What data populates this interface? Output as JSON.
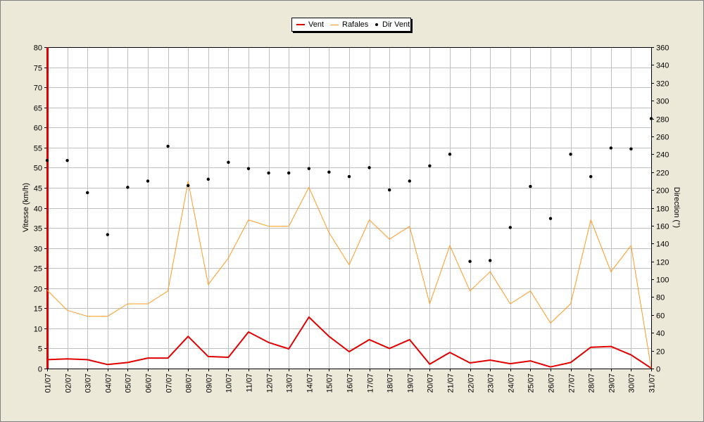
{
  "chart_data": {
    "type": "line",
    "categories": [
      "01/07",
      "02/07",
      "03/07",
      "04/07",
      "05/07",
      "06/07",
      "07/07",
      "08/07",
      "09/07",
      "10/07",
      "11/07",
      "12/07",
      "13/07",
      "14/07",
      "15/07",
      "16/07",
      "17/07",
      "18/07",
      "19/07",
      "20/07",
      "21/07",
      "22/07",
      "23/07",
      "24/07",
      "25/07",
      "26/07",
      "27/07",
      "28/07",
      "29/07",
      "30/07",
      "31/07"
    ],
    "ylabel": "Vitesse (km/h)",
    "ylabel_right": "Direction (°)",
    "ylim": [
      0,
      80
    ],
    "ylim_right": [
      0,
      360
    ],
    "yticks": [
      0,
      5,
      10,
      15,
      20,
      25,
      30,
      35,
      40,
      45,
      50,
      55,
      60,
      65,
      70,
      75,
      80
    ],
    "yticks_right": [
      0,
      20,
      40,
      60,
      80,
      100,
      120,
      140,
      160,
      180,
      200,
      220,
      240,
      260,
      280,
      300,
      320,
      340,
      360
    ],
    "grid": true,
    "legend_position": "top-center",
    "series": [
      {
        "name": "Vent",
        "color": "#e00000",
        "axis": "left",
        "style": "line",
        "values": [
          2.2,
          2.4,
          2.2,
          1.0,
          1.5,
          2.6,
          2.6,
          8.0,
          3.0,
          2.8,
          9.1,
          6.5,
          4.9,
          12.8,
          8.0,
          4.2,
          7.2,
          5.0,
          7.2,
          1.1,
          4.0,
          1.4,
          2.1,
          1.2,
          1.9,
          0.4,
          1.5,
          5.3,
          5.5,
          3.4,
          0.1
        ]
      },
      {
        "name": "Rafales",
        "color": "#ff9922",
        "axis": "left",
        "style": "line",
        "values": [
          19.5,
          14.5,
          13.0,
          13.0,
          16.1,
          16.1,
          19.3,
          46.6,
          20.9,
          27.5,
          37.0,
          35.4,
          35.4,
          45.1,
          33.8,
          25.8,
          37.0,
          32.2,
          35.4,
          16.1,
          30.6,
          19.3,
          24.1,
          16.1,
          19.3,
          11.3,
          16.1,
          37.0,
          24.1,
          30.6,
          0.1
        ]
      },
      {
        "name": "Dir Vent",
        "color": "#000000",
        "axis": "right",
        "style": "points",
        "values": [
          233,
          233,
          197,
          150,
          203,
          210,
          249,
          205,
          212,
          231,
          224,
          219,
          219,
          224,
          220,
          215,
          225,
          200,
          210,
          227,
          240,
          120,
          121,
          158,
          204,
          168,
          240,
          215,
          247,
          246,
          280
        ]
      }
    ]
  }
}
